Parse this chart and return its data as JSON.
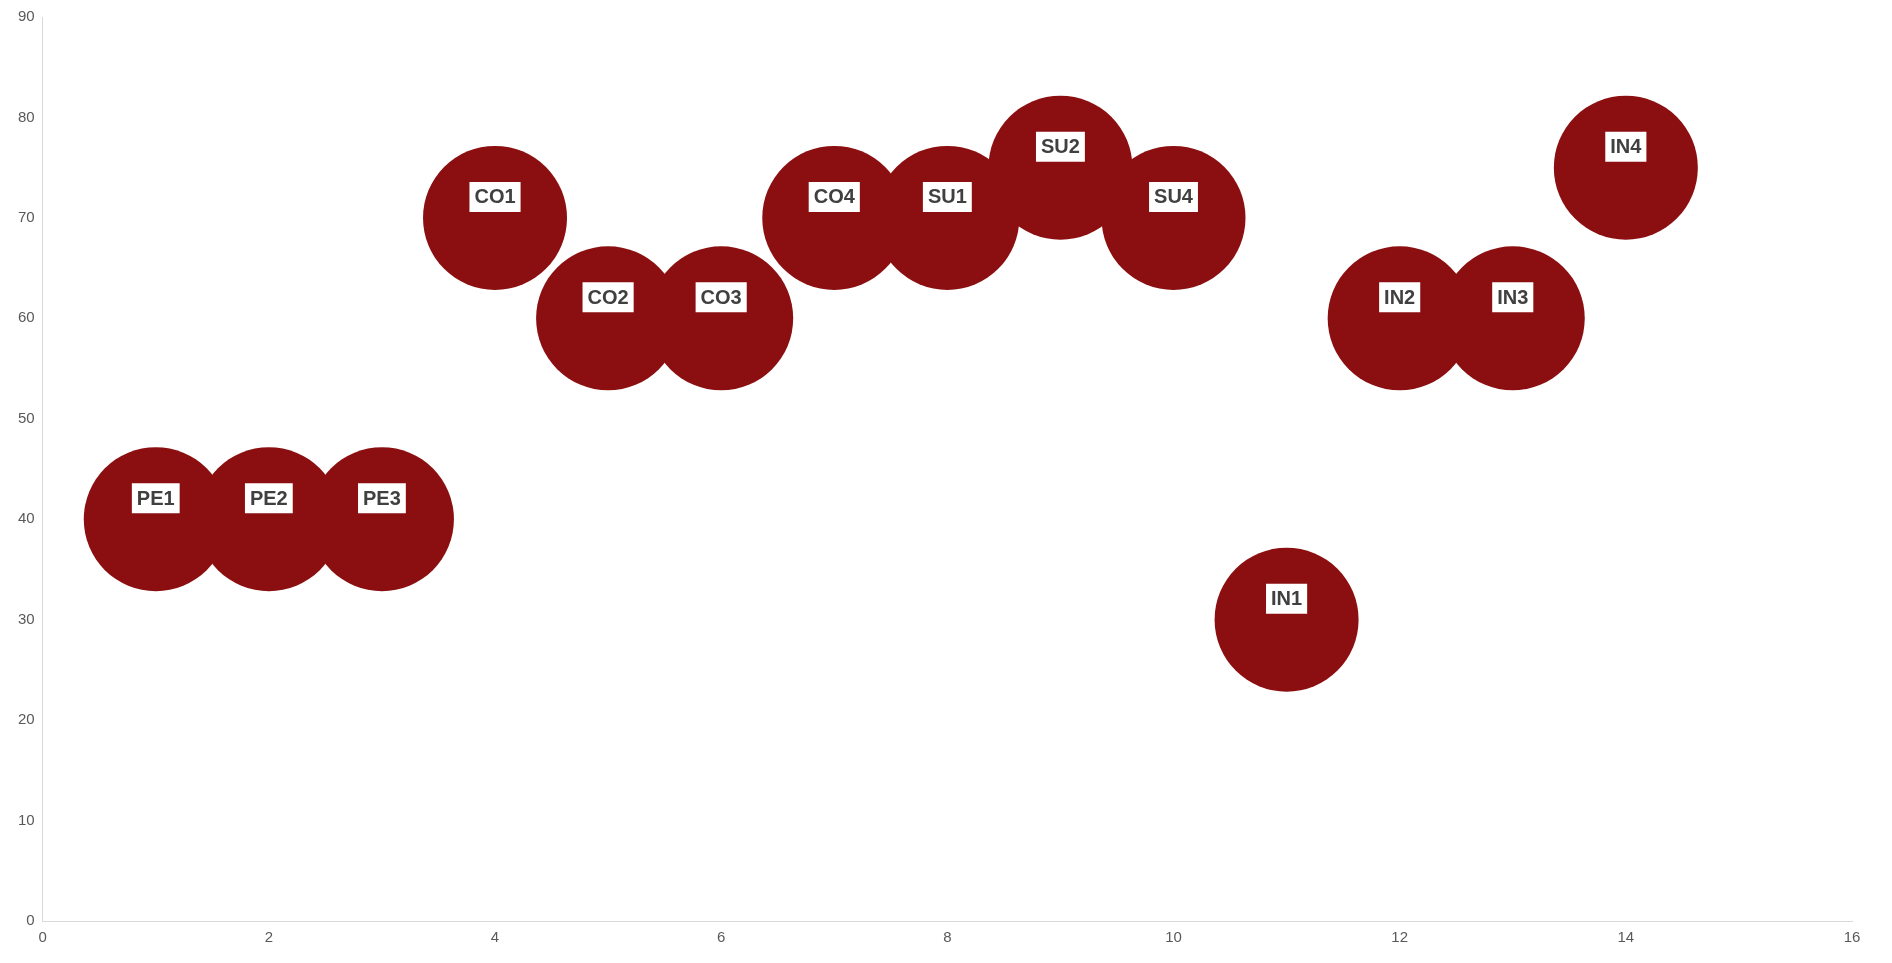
{
  "chart_data": {
    "type": "bubble",
    "x": [
      1,
      2,
      3,
      4,
      5,
      6,
      7,
      8,
      9,
      10,
      11,
      12,
      13,
      14
    ],
    "values": [
      40,
      40,
      40,
      70,
      60,
      60,
      70,
      70,
      75,
      70,
      30,
      60,
      60,
      75
    ],
    "sizes": [
      1,
      1,
      1,
      1,
      1,
      1,
      1,
      1,
      1,
      1,
      1,
      1,
      1,
      1
    ],
    "value_labels": [
      "PE1",
      "PE2",
      "PE3",
      "CO1",
      "CO2",
      "CO3",
      "CO4",
      "SU1",
      "SU2",
      "SU4",
      "IN1",
      "IN2",
      "IN3",
      "IN4"
    ],
    "color": "#8b0f10",
    "xlim": [
      0,
      16
    ],
    "xticks": [
      0,
      2,
      4,
      6,
      8,
      10,
      12,
      14,
      16
    ],
    "ylim": [
      0,
      90
    ],
    "yticks": [
      0,
      10,
      20,
      30,
      40,
      50,
      60,
      70,
      80,
      90
    ],
    "grid": false,
    "legend": false
  }
}
